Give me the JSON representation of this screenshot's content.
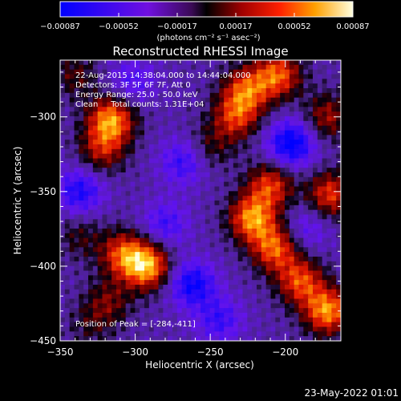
{
  "chart_data": {
    "type": "heatmap",
    "title": "Reconstructed RHESSI Image",
    "xlabel": "Heliocentric X (arcsec)",
    "ylabel": "Heliocentric Y (arcsec)",
    "xlim": [
      -350,
      -163
    ],
    "ylim": [
      -450,
      -262
    ],
    "xticks": [
      -350,
      -300,
      -250,
      -200
    ],
    "yticks": [
      -300,
      -350,
      -400,
      -450
    ],
    "colorbar": {
      "min": -0.00087,
      "max": 0.00087,
      "ticks": [
        "-0.00087",
        "-0.00052",
        "-0.00017",
        "0.00017",
        "0.00052",
        "0.00087"
      ],
      "unit_label": "(photons cm⁻² s⁻¹ asec⁻²)"
    },
    "annotations": {
      "time_range": "22-Aug-2015 14:38:04.000 to 14:44:04.000",
      "detectors": "Detectors: 3F 5F 6F 7F, Att 0",
      "energy": "Energy Range: 25.0 - 50.0 keV",
      "clean": "Clean     Total counts: 1.31E+04",
      "peak": "Position of Peak = [-284,-411]"
    },
    "sources": [
      {
        "x": -316,
        "y": -302,
        "amp": 0.00082
      },
      {
        "x": -322,
        "y": -322,
        "amp": 0.00048
      },
      {
        "x": -292,
        "y": -400,
        "amp": 0.00086
      },
      {
        "x": -308,
        "y": -392,
        "amp": 0.00062
      },
      {
        "x": -318,
        "y": -424,
        "amp": 0.00035
      },
      {
        "x": -337,
        "y": -380,
        "amp": 0.00025
      },
      {
        "x": -233,
        "y": -300,
        "amp": 0.00058
      },
      {
        "x": -226,
        "y": -282,
        "amp": 0.00064
      },
      {
        "x": -205,
        "y": -272,
        "amp": 0.0007
      },
      {
        "x": -210,
        "y": -346,
        "amp": 0.00062
      },
      {
        "x": -222,
        "y": -368,
        "amp": 0.0008
      },
      {
        "x": -207,
        "y": -388,
        "amp": 0.0007
      },
      {
        "x": -190,
        "y": -410,
        "amp": 0.00065
      },
      {
        "x": -172,
        "y": -430,
        "amp": 0.00082
      },
      {
        "x": -170,
        "y": -352,
        "amp": 0.00062
      },
      {
        "x": -172,
        "y": -300,
        "amp": 0.00045
      },
      {
        "x": -250,
        "y": -320,
        "amp": 0.00028
      },
      {
        "x": -340,
        "y": -272,
        "amp": 0.0003
      },
      {
        "x": -330,
        "y": -440,
        "amp": 0.0002
      },
      {
        "x": -196,
        "y": -318,
        "amp": -0.0007
      },
      {
        "x": -268,
        "y": -330,
        "amp": -0.00042
      },
      {
        "x": -337,
        "y": -350,
        "amp": -0.00052
      },
      {
        "x": -262,
        "y": -412,
        "amp": -0.0006
      },
      {
        "x": -244,
        "y": -436,
        "amp": -0.0004
      },
      {
        "x": -302,
        "y": -276,
        "amp": -0.00032
      },
      {
        "x": -280,
        "y": -372,
        "amp": -0.00038
      },
      {
        "x": -186,
        "y": -375,
        "amp": -0.00028
      }
    ]
  },
  "footer": {
    "date": "23-May-2022 01:01"
  }
}
